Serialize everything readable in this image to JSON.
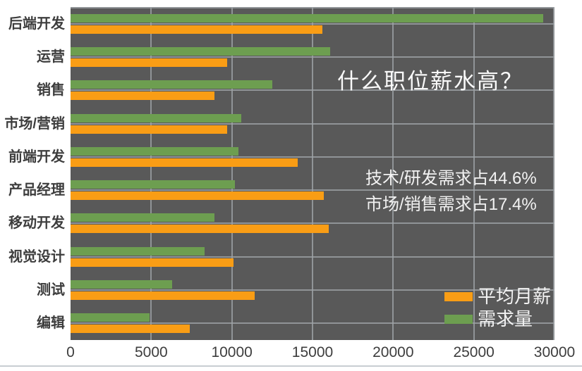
{
  "chart_data": {
    "type": "bar",
    "orientation": "horizontal",
    "title": "什么职位薪水高？",
    "categories": [
      "后端开发",
      "运营",
      "销售",
      "市场/营销",
      "前端开发",
      "产品经理",
      "移动开发",
      "视觉设计",
      "测试",
      "编辑"
    ],
    "series": [
      {
        "name": "平均月薪",
        "color": "#f99d15",
        "values": [
          15600,
          9700,
          8900,
          9700,
          14100,
          15700,
          16000,
          10100,
          11400,
          7400
        ]
      },
      {
        "name": "需求量",
        "color": "#6d9e50",
        "values": [
          29300,
          16100,
          12500,
          10600,
          10400,
          10200,
          8900,
          8300,
          6300,
          4900
        ]
      }
    ],
    "xlim": [
      0,
      30000
    ],
    "xticks": [
      "0",
      "5000",
      "10000",
      "15000",
      "20000",
      "25000",
      "30000"
    ],
    "grid": true,
    "legend_position": "bottom-right",
    "annotations": [
      "技术/研发需求占44.6%",
      "市场/销售需求占17.4%"
    ],
    "colors": {
      "plot_background": "#595959",
      "gridline": "#9da2a6",
      "axis_text": "#3d3d3d",
      "plot_text": "#f2f2f2",
      "page_background": "#ffffff",
      "footer_divider": "#c8cdd2"
    }
  }
}
